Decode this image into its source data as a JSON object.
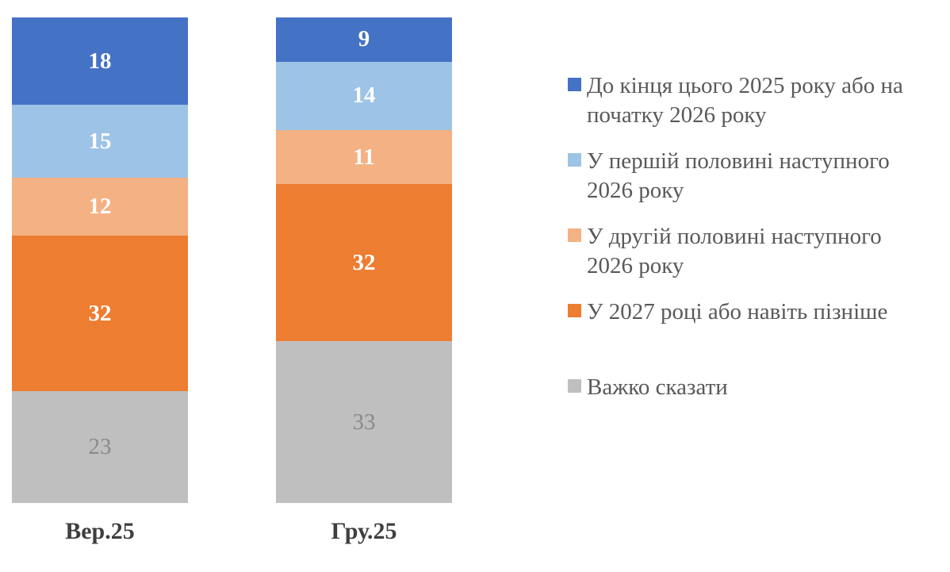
{
  "chart_data": {
    "type": "bar",
    "subtype": "stacked-column",
    "title": "",
    "xlabel": "",
    "ylabel": "",
    "ylim": [
      0,
      100
    ],
    "grid": false,
    "legend_position": "right",
    "categories": [
      "Вер.25",
      "Гру.25"
    ],
    "series": [
      {
        "name": "До кінця цього 2025 року або на початку 2026 року",
        "color": "#4472c4",
        "values": [
          18,
          9
        ],
        "label_style": "white-bold"
      },
      {
        "name": "У першій половині наступного 2026 року",
        "color": "#9dc3e6",
        "values": [
          15,
          14
        ],
        "label_style": "white-bold"
      },
      {
        "name": "У другій половині наступного 2026 року",
        "color": "#f4b183",
        "values": [
          12,
          11
        ],
        "label_style": "white-bold"
      },
      {
        "name": "У 2027 році або навіть пізніше",
        "color": "#ed7d31",
        "values": [
          32,
          32
        ],
        "label_style": "white-bold"
      },
      {
        "name": "Важко сказати",
        "color": "#bfbfbf",
        "values": [
          23,
          33
        ],
        "label_style": "gray-regular"
      }
    ]
  },
  "legend": {
    "items": [
      {
        "lines": "До кінця цього 2025 року або на\nпочатку 2026 року",
        "color": "#4472c4"
      },
      {
        "lines": "У першій половині наступного\n2026 року",
        "color": "#9dc3e6"
      },
      {
        "lines": "У другій половині наступного\n2026 року",
        "color": "#f4b183"
      },
      {
        "lines": "У 2027 році або навіть пізніше",
        "color": "#ed7d31"
      },
      {
        "lines": "Важко сказати",
        "color": "#bfbfbf"
      }
    ]
  },
  "colors": {
    "value_label_white": "#ffffff",
    "value_label_gray": "#8a8a8a",
    "axis_label": "#3f3f3f",
    "legend_text": "#595959",
    "background": "#ffffff"
  }
}
